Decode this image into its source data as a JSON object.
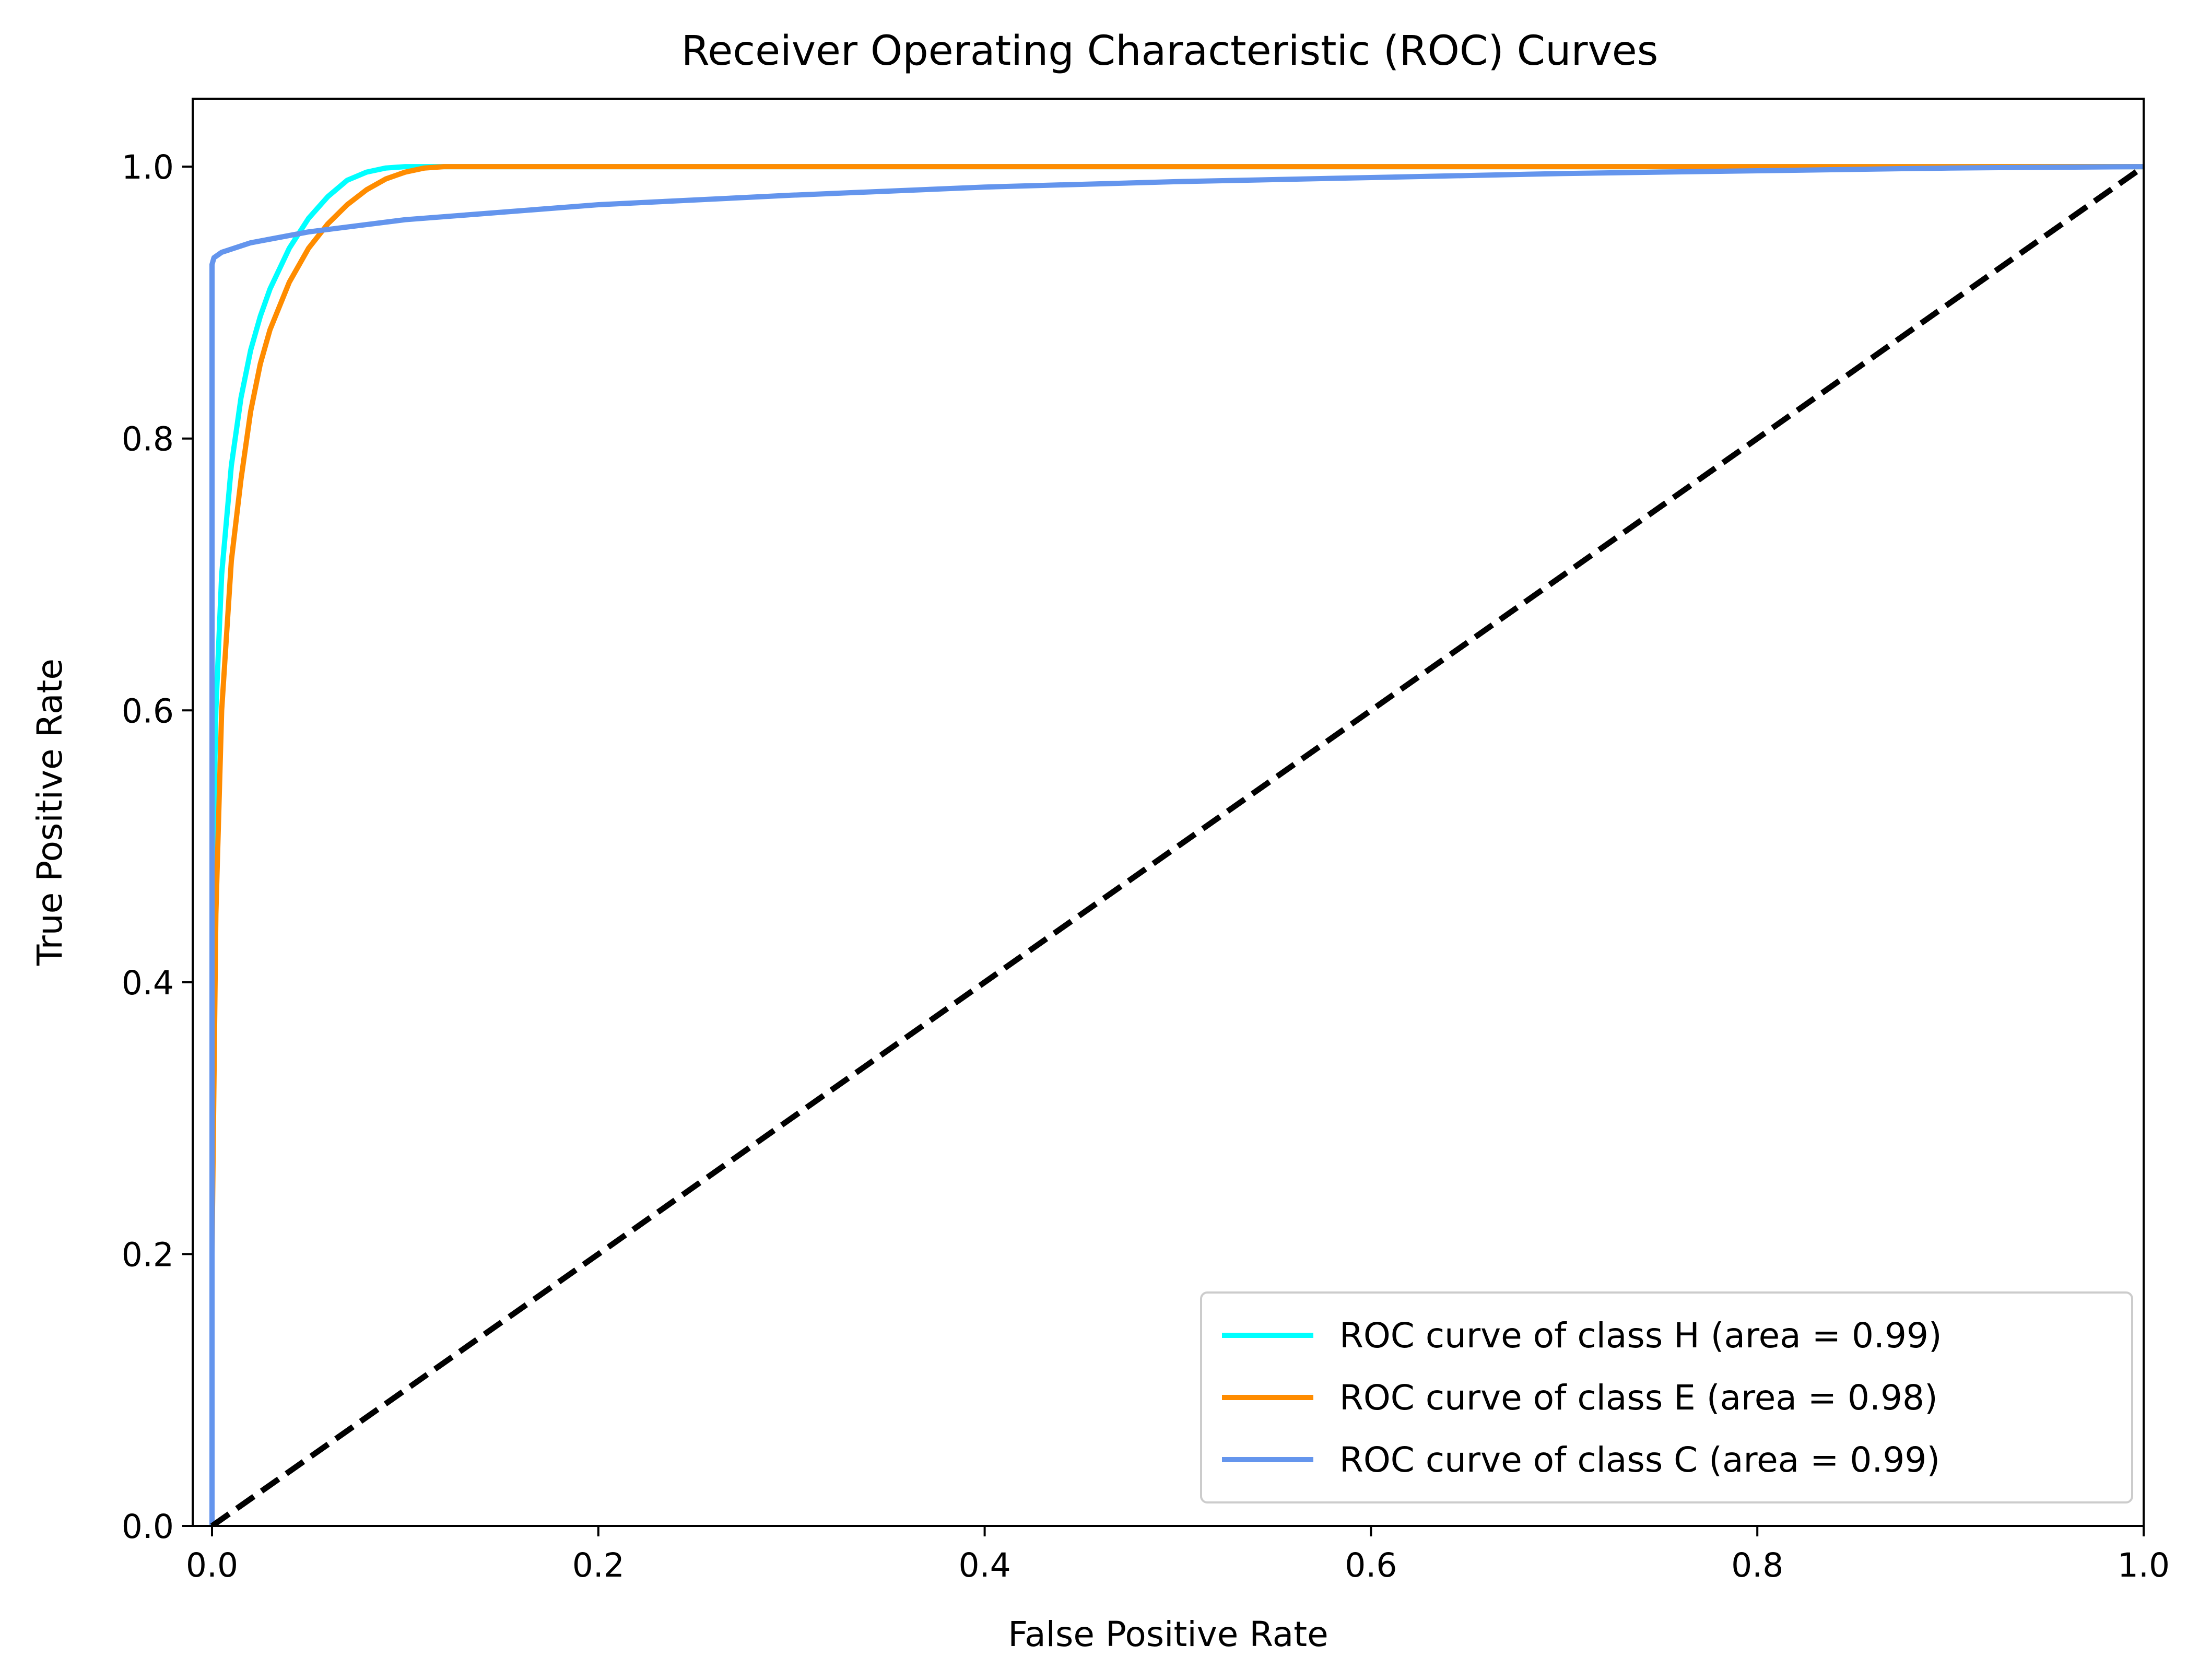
{
  "chart_data": {
    "type": "line",
    "title": "Receiver Operating Characteristic (ROC) Curves",
    "xlabel": "False Positive Rate",
    "ylabel": "True Positive Rate",
    "xlim": [
      -0.01,
      1.0
    ],
    "ylim": [
      0.0,
      1.05
    ],
    "x_ticks": [
      0.0,
      0.2,
      0.4,
      0.6,
      0.8,
      1.0
    ],
    "x_tick_labels": [
      "0.0",
      "0.2",
      "0.4",
      "0.6",
      "0.8",
      "1.0"
    ],
    "y_ticks": [
      0.0,
      0.2,
      0.4,
      0.6,
      0.8,
      1.0
    ],
    "y_tick_labels": [
      "0.0",
      "0.2",
      "0.4",
      "0.6",
      "0.8",
      "1.0"
    ],
    "grid": false,
    "legend_position": "lower-right",
    "series": [
      {
        "name": "ROC curve of class H (area = 0.99)",
        "color": "#00ffff",
        "x": [
          0.0,
          0.0,
          0.002,
          0.005,
          0.01,
          0.015,
          0.02,
          0.025,
          0.03,
          0.04,
          0.05,
          0.06,
          0.07,
          0.08,
          0.09,
          0.1,
          0.11,
          1.0
        ],
        "y": [
          0.0,
          0.45,
          0.6,
          0.7,
          0.78,
          0.83,
          0.865,
          0.89,
          0.91,
          0.94,
          0.962,
          0.978,
          0.99,
          0.996,
          0.999,
          1.0,
          1.0,
          1.0
        ]
      },
      {
        "name": "ROC curve of class E (area = 0.98)",
        "color": "#ff8c00",
        "x": [
          0.0,
          0.0,
          0.002,
          0.005,
          0.01,
          0.015,
          0.02,
          0.025,
          0.03,
          0.04,
          0.05,
          0.06,
          0.07,
          0.08,
          0.09,
          0.1,
          0.11,
          0.12,
          0.13,
          1.0
        ],
        "y": [
          0.0,
          0.2,
          0.45,
          0.6,
          0.71,
          0.77,
          0.82,
          0.855,
          0.88,
          0.915,
          0.94,
          0.958,
          0.972,
          0.983,
          0.991,
          0.996,
          0.999,
          1.0,
          1.0,
          1.0
        ]
      },
      {
        "name": "ROC curve of class C (area = 0.99)",
        "color": "#6495ed",
        "x": [
          0.0,
          0.0,
          0.001,
          0.005,
          0.02,
          0.05,
          0.1,
          0.2,
          0.3,
          0.4,
          0.5,
          0.6,
          0.7,
          0.8,
          0.9,
          1.0
        ],
        "y": [
          0.0,
          0.928,
          0.933,
          0.937,
          0.944,
          0.952,
          0.961,
          0.972,
          0.979,
          0.985,
          0.989,
          0.992,
          0.995,
          0.997,
          0.999,
          1.0
        ]
      },
      {
        "name": "",
        "color": "#000000",
        "dashed": true,
        "x": [
          0.0,
          1.0
        ],
        "y": [
          0.0,
          1.0
        ]
      }
    ]
  }
}
